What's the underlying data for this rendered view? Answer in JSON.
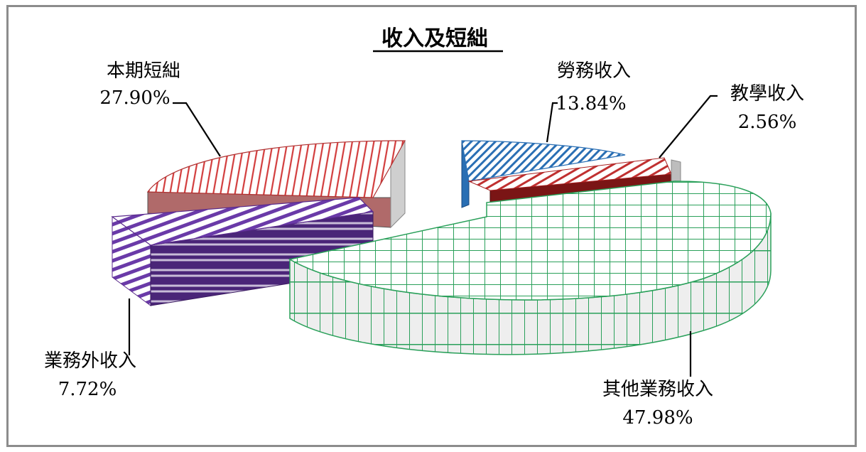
{
  "chart_data": {
    "type": "pie",
    "title": "收入及短絀",
    "slices": [
      {
        "name": "其他業務收入",
        "value": "47.98%",
        "pct": 47.98,
        "color": "#2aa05a"
      },
      {
        "name": "業務外收入",
        "value": "7.72%",
        "pct": 7.72,
        "color": "#5a2a8c"
      },
      {
        "name": "本期短絀",
        "value": "27.90%",
        "pct": 27.9,
        "color": "#d23c3c"
      },
      {
        "name": "勞務收入",
        "value": "13.84%",
        "pct": 13.84,
        "color": "#2a6fb4"
      },
      {
        "name": "教學收入",
        "value": "2.56%",
        "pct": 2.56,
        "color": "#a82020"
      }
    ],
    "legend": "none"
  }
}
